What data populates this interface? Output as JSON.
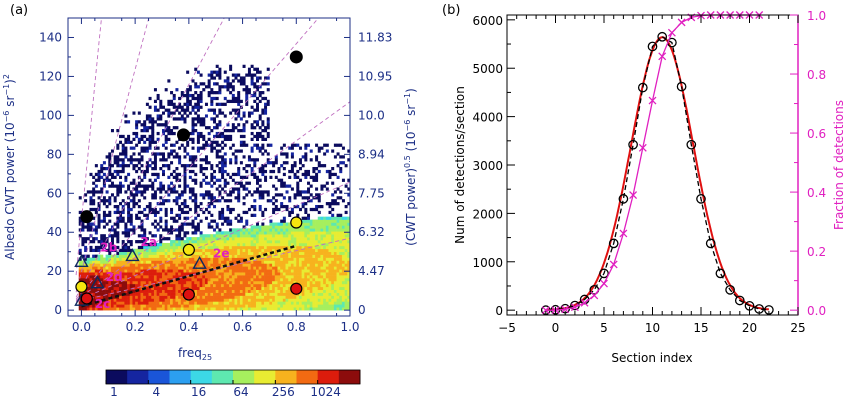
{
  "chart_data": [
    {
      "panel_label": "(a)",
      "type": "heatmap",
      "xlabel_main": "freq",
      "xlabel_sub": "25",
      "ylabel_main": "Albedo CWT power (10",
      "ylabel_exp1": "−6",
      "ylabel_mid": " sr",
      "ylabel_exp2": "−1",
      "ylabel_end": ")",
      "ylabel_exp3": "2",
      "y2label_main": "(CWT power)",
      "y2label_exp1": "0.5",
      "y2label_mid": " (10",
      "y2label_exp2": "−6",
      "y2label_end": " sr",
      "y2label_exp3": "−1",
      "y2label_close": ")",
      "xlim": [
        -0.05,
        1.0
      ],
      "ylim": [
        -3,
        150
      ],
      "xticks": [
        "0.0",
        "0.2",
        "0.4",
        "0.6",
        "0.8",
        "1.0"
      ],
      "yticks": [
        "0",
        "20",
        "40",
        "60",
        "80",
        "100",
        "120",
        "140"
      ],
      "y2ticks": [
        "0",
        "4.47",
        "6.32",
        "7.75",
        "8.94",
        "10.0",
        "10.95",
        "11.83"
      ],
      "black_circles": [
        {
          "x": 0.02,
          "y": 48
        },
        {
          "x": 0.38,
          "y": 90
        },
        {
          "x": 0.8,
          "y": 130
        }
      ],
      "yellow_circles": [
        {
          "x": 0.0,
          "y": 12
        },
        {
          "x": 0.4,
          "y": 31
        },
        {
          "x": 0.8,
          "y": 45
        }
      ],
      "red_circles": [
        {
          "x": 0.02,
          "y": 6
        },
        {
          "x": 0.4,
          "y": 8
        },
        {
          "x": 0.8,
          "y": 11
        }
      ],
      "triangles": [
        {
          "x": 0.0,
          "y": 25
        },
        {
          "x": 0.06,
          "y": 14
        },
        {
          "x": 0.19,
          "y": 28
        },
        {
          "x": 0.44,
          "y": 24
        },
        {
          "x": 0.0,
          "y": 5
        }
      ],
      "annotations": [
        {
          "text": "2b",
          "x": 0.07,
          "y": 30
        },
        {
          "text": "2a",
          "x": 0.22,
          "y": 33
        },
        {
          "text": "2e",
          "x": 0.49,
          "y": 27
        },
        {
          "text": "2d",
          "x": 0.09,
          "y": 15
        },
        {
          "text": "2c",
          "x": 0.05,
          "y": 1
        }
      ],
      "fit_line": {
        "x": [
          0.0,
          0.8
        ],
        "y": [
          2,
          33
        ]
      },
      "colorbar_ticks": [
        "1",
        "4",
        "16",
        "64",
        "256",
        "1024"
      ],
      "colorbar_colors": [
        "#0b0b5e",
        "#1525a0",
        "#1a55d8",
        "#2c9ff0",
        "#3cd8e6",
        "#5ee8b0",
        "#a6ef5e",
        "#e8ec32",
        "#f7b21e",
        "#f26a12",
        "#dc1c0c",
        "#8c0c0c"
      ]
    },
    {
      "panel_label": "(b)",
      "type": "line",
      "xlabel": "Section index",
      "ylabel": "Num of detections/section",
      "y2label": "Fraction of detections",
      "xlim": [
        -5,
        25
      ],
      "ylim": [
        -100,
        6100
      ],
      "y2lim": [
        -0.0164,
        1.0
      ],
      "xticks": [
        "−5",
        "0",
        "5",
        "10",
        "15",
        "20",
        "25"
      ],
      "yticks": [
        "0",
        "1000",
        "2000",
        "3000",
        "4000",
        "5000",
        "6000"
      ],
      "y2ticks": [
        "0.0",
        "0.2",
        "0.4",
        "0.6",
        "0.8",
        "1.0"
      ],
      "series": [
        {
          "marker": "circle",
          "x": [
            -1,
            0,
            1,
            2,
            3,
            4,
            5,
            6,
            7,
            8,
            9,
            10,
            11,
            12,
            13,
            14,
            15,
            16,
            17,
            18,
            19,
            20,
            21,
            22
          ],
          "values": [
            0,
            8,
            30,
            95,
            220,
            420,
            760,
            1380,
            2300,
            3420,
            4600,
            5450,
            5650,
            5530,
            4620,
            3420,
            2300,
            1380,
            760,
            420,
            200,
            90,
            25,
            5
          ]
        },
        {
          "marker": "cross",
          "axis": "right",
          "x": [
            -1,
            0,
            1,
            2,
            3,
            4,
            5,
            6,
            7,
            8,
            9,
            10,
            11,
            12,
            13,
            14,
            15,
            16,
            17,
            18,
            19,
            20,
            21
          ],
          "values": [
            0.0,
            0.0,
            0.003,
            0.01,
            0.025,
            0.05,
            0.09,
            0.155,
            0.26,
            0.39,
            0.55,
            0.71,
            0.86,
            0.94,
            0.975,
            0.992,
            0.998,
            1.0,
            1.0,
            1.0,
            1.0,
            1.0,
            1.0
          ]
        }
      ],
      "gauss_fit": {
        "amplitude": 5640,
        "mean": 11.0,
        "sigma": 3.2
      }
    }
  ],
  "colors": {
    "navy": "#1c2f86",
    "magenta": "#e020c0",
    "fit_red": "#e01010",
    "dash_purple": "#c070c0"
  }
}
